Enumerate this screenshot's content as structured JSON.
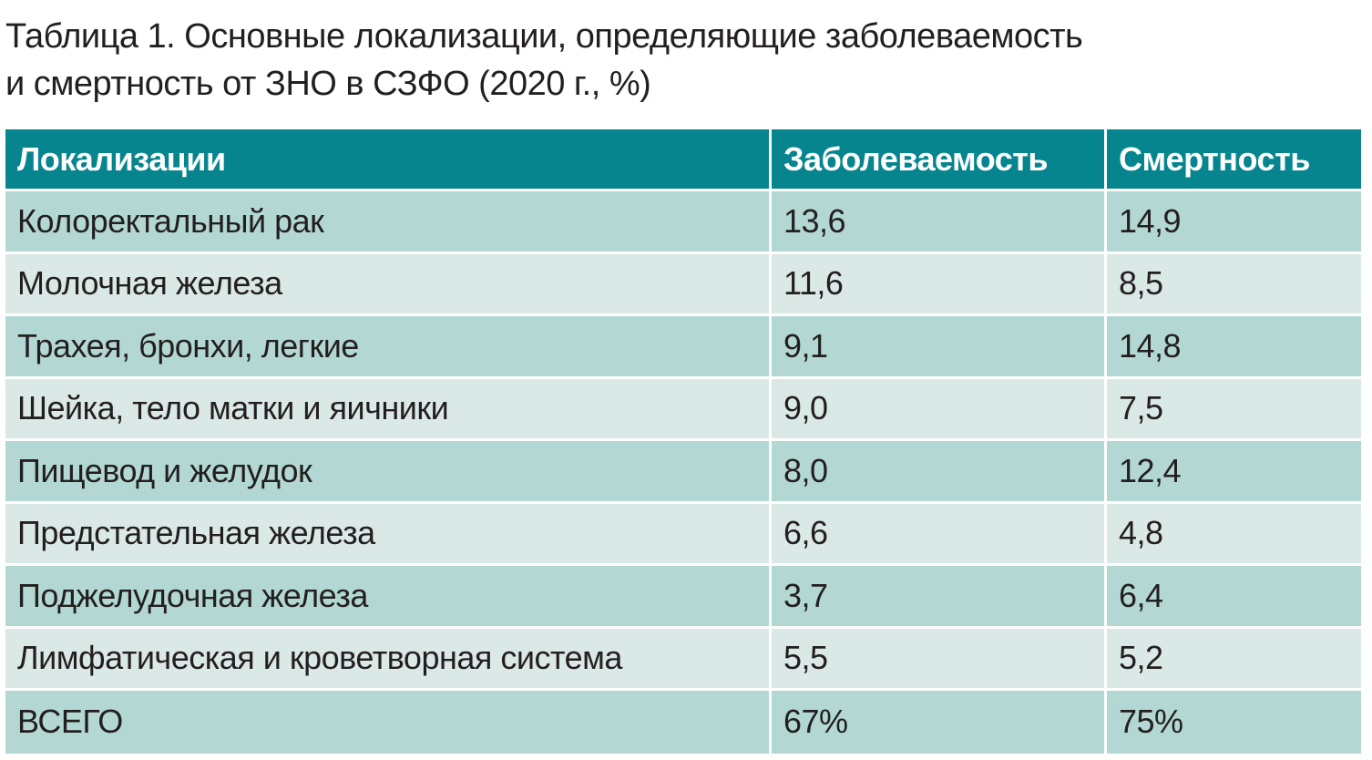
{
  "caption": {
    "line1": "Таблица 1. Основные локализации, определяющие заболеваемость",
    "line2": "и смертность от ЗНО в СЗФО (2020 г., %)"
  },
  "table": {
    "headers": [
      "Локализации",
      "Заболеваемость",
      "Смертность"
    ],
    "rows": [
      {
        "localization": "Колоректальный рак",
        "incidence": "13,6",
        "mortality": "14,9"
      },
      {
        "localization": "Молочная железа",
        "incidence": "11,6",
        "mortality": "8,5"
      },
      {
        "localization": "Трахея, бронхи, легкие",
        "incidence": "9,1",
        "mortality": "14,8"
      },
      {
        "localization": "Шейка, тело матки и яичники",
        "incidence": "9,0",
        "mortality": "7,5"
      },
      {
        "localization": "Пищевод и желудок",
        "incidence": "8,0",
        "mortality": "12,4"
      },
      {
        "localization": "Предстательная железа",
        "incidence": "6,6",
        "mortality": "4,8"
      },
      {
        "localization": "Поджелудочная железа",
        "incidence": "3,7",
        "mortality": "6,4"
      },
      {
        "localization": "Лимфатическая и кроветворная система",
        "incidence": "5,5",
        "mortality": "5,2"
      },
      {
        "localization": "ВСЕГО",
        "incidence": "67%",
        "mortality": "75%"
      }
    ]
  },
  "colors": {
    "header_bg": "#06858e",
    "row_odd_bg": "#b3d8d3",
    "row_even_bg": "#dbe9e6",
    "text": "#231f20"
  }
}
